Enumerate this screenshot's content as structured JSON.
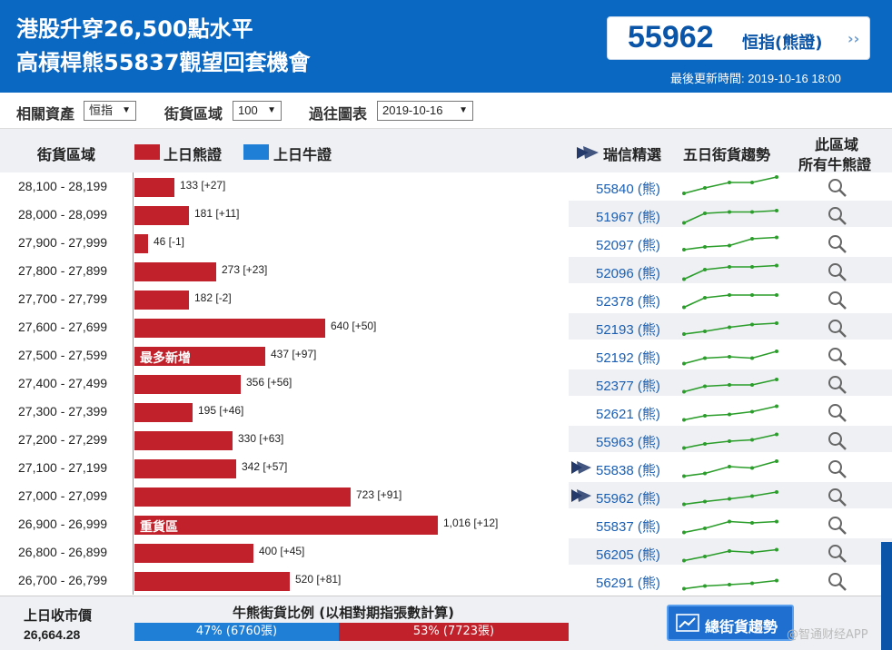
{
  "header": {
    "headline_line1": "港股升穿26,500點水平",
    "headline_line2": "高槓桿熊55837觀望回套機會",
    "price": "55962",
    "price_label": "恒指(熊證)",
    "price_arrow": "››",
    "updated": "最後更新時間: 2019-10-16 18:00"
  },
  "filters": {
    "asset_label": "相關資產",
    "asset_value": "恒指",
    "zone_label": "街貨區域",
    "zone_value": "100",
    "chart_label": "過往圖表",
    "chart_value": "2019-10-16"
  },
  "table_header": {
    "zone": "街貨區域",
    "bear_legend": "上日熊證",
    "bull_legend": "上日牛證",
    "pick": "瑞信精選",
    "trend": "五日街貨趨勢",
    "all_line1": "此區域",
    "all_line2": "所有牛熊證"
  },
  "colors": {
    "bear": "#c0212a",
    "bull": "#1f7fd6",
    "header": "#0a67c2",
    "spark": "#2a9d2a"
  },
  "rows": [
    {
      "range": "28,100 - 28,199",
      "count": 133,
      "label": "133 [+27]",
      "pick": "55840 (熊)",
      "tag": "",
      "featured": false,
      "spark": [
        2,
        6,
        10,
        10,
        14
      ]
    },
    {
      "range": "28,000 - 28,099",
      "count": 181,
      "label": "181 [+11]",
      "pick": "51967 (熊)",
      "tag": "",
      "featured": false,
      "spark": [
        1,
        8,
        9,
        9,
        10
      ]
    },
    {
      "range": "27,900 - 27,999",
      "count": 46,
      "label": "46 [-1]",
      "pick": "52097 (熊)",
      "tag": "",
      "featured": false,
      "spark": [
        2,
        4,
        5,
        10,
        11
      ]
    },
    {
      "range": "27,800 - 27,899",
      "count": 273,
      "label": "273 [+23]",
      "pick": "52096 (熊)",
      "tag": "",
      "featured": false,
      "spark": [
        1,
        8,
        10,
        10,
        11
      ]
    },
    {
      "range": "27,700 - 27,799",
      "count": 182,
      "label": "182 [-2]",
      "pick": "52378 (熊)",
      "tag": "",
      "featured": false,
      "spark": [
        1,
        8,
        10,
        10,
        10
      ]
    },
    {
      "range": "27,600 - 27,699",
      "count": 640,
      "label": "640 [+50]",
      "pick": "52193 (熊)",
      "tag": "",
      "featured": false,
      "spark": [
        2,
        4,
        7,
        9,
        10
      ]
    },
    {
      "range": "27,500 - 27,599",
      "count": 437,
      "label": "437 [+97]",
      "pick": "52192 (熊)",
      "tag": "最多新增",
      "featured": false,
      "spark": [
        1,
        5,
        6,
        5,
        10
      ]
    },
    {
      "range": "27,400 - 27,499",
      "count": 356,
      "label": "356 [+56]",
      "pick": "52377 (熊)",
      "tag": "",
      "featured": false,
      "spark": [
        1,
        5,
        6,
        6,
        10
      ]
    },
    {
      "range": "27,300 - 27,399",
      "count": 195,
      "label": "195 [+46]",
      "pick": "52621 (熊)",
      "tag": "",
      "featured": false,
      "spark": [
        1,
        4,
        5,
        7,
        11
      ]
    },
    {
      "range": "27,200 - 27,299",
      "count": 330,
      "label": "330 [+63]",
      "pick": "55963 (熊)",
      "tag": "",
      "featured": false,
      "spark": [
        1,
        4,
        6,
        7,
        11
      ]
    },
    {
      "range": "27,100 - 27,199",
      "count": 342,
      "label": "342 [+57]",
      "pick": "55838 (熊)",
      "tag": "",
      "featured": true,
      "spark": [
        1,
        3,
        8,
        7,
        12
      ]
    },
    {
      "range": "27,000 - 27,099",
      "count": 723,
      "label": "723 [+91]",
      "pick": "55962 (熊)",
      "tag": "",
      "featured": true,
      "spark": [
        1,
        3,
        5,
        7,
        10
      ]
    },
    {
      "range": "26,900 - 26,999",
      "count": 1016,
      "label": "1,016 [+12]",
      "pick": "55837 (熊)",
      "tag": "重貨區",
      "featured": false,
      "spark": [
        1,
        4,
        9,
        8,
        9
      ]
    },
    {
      "range": "26,800 - 26,899",
      "count": 400,
      "label": "400 [+45]",
      "pick": "56205 (熊)",
      "tag": "",
      "featured": false,
      "spark": [
        1,
        4,
        8,
        7,
        9
      ]
    },
    {
      "range": "26,700 - 26,799",
      "count": 520,
      "label": "520 [+81]",
      "pick": "56291 (熊)",
      "tag": "",
      "featured": false,
      "spark": [
        1,
        3,
        4,
        5,
        7
      ]
    }
  ],
  "footer": {
    "close_label": "上日收市價",
    "close_value": "26,664.28",
    "ratio_title": "牛熊街貨比例 (以相對期指張數計算)",
    "bull_pct": 47,
    "bull_label": "47% (6760張)",
    "bear_label": "53% (7723張)",
    "trend_button": "總街貨趨勢"
  },
  "watermark": "@智通财经APP"
}
